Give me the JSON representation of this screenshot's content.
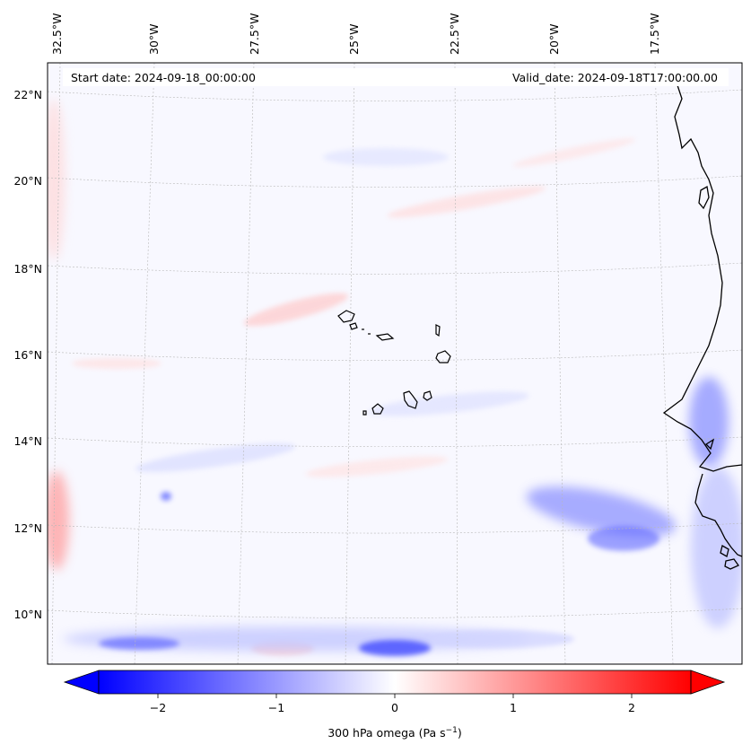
{
  "header": {
    "start_date": "Start date: 2024-09-18_00:00:00",
    "valid_date": "Valid_date: 2024-09-18T17:00:00.00"
  },
  "map": {
    "lon_labels": [
      "32.5°W",
      "30°W",
      "27.5°W",
      "25°W",
      "22.5°W",
      "20°W",
      "17.5°W"
    ],
    "lat_labels": [
      "22°N",
      "20°N",
      "18°N",
      "16°N",
      "14°N",
      "12°N",
      "10°N"
    ],
    "extent": {
      "lon_min": -33.0,
      "lon_max": -15.5,
      "lat_min": 8.8,
      "lat_max": 22.8
    },
    "gridlines": true
  },
  "colorbar": {
    "ticks": [
      "−2",
      "−1",
      "0",
      "1",
      "2"
    ],
    "tick_values": [
      -2,
      -1,
      0,
      1,
      2
    ],
    "range": [
      -2.5,
      2.5
    ],
    "label_prefix": "300 hPa omega (Pa s",
    "label_exponent": "−1",
    "label_suffix": ")",
    "colors": {
      "negative": "#0000ff",
      "zero": "#ffffff",
      "positive": "#ff0000"
    },
    "extend": "both"
  }
}
